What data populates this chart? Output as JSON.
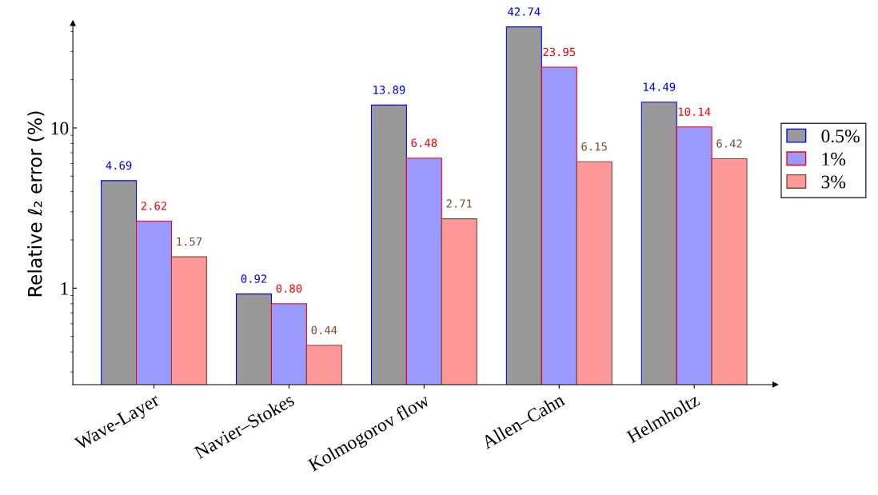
{
  "chart_data": {
    "type": "bar",
    "ylabel": "Relative ℓ₂ error (%)",
    "categories": [
      "Wave-Layer",
      "Navier–Stokes",
      "Kolmogorov flow",
      "Allen–Cahn",
      "Helmholtz"
    ],
    "series": [
      {
        "name": "0.5%",
        "color": "#999999",
        "values": [
          4.69,
          0.92,
          13.89,
          42.74,
          14.49
        ],
        "value_labels": [
          "4.69",
          "0.92",
          "13.89",
          "42.74",
          "14.49"
        ]
      },
      {
        "name": "1%",
        "color": "#9999ff",
        "values": [
          2.62,
          0.8,
          6.48,
          23.95,
          10.14
        ],
        "value_labels": [
          "2.62",
          "0.80",
          "6.48",
          "23.95",
          "10.14"
        ]
      },
      {
        "name": "3%",
        "color": "#ff9999",
        "values": [
          1.57,
          0.44,
          2.71,
          6.15,
          6.42
        ],
        "value_labels": [
          "1.57",
          "0.44",
          "2.71",
          "6.15",
          "6.42"
        ]
      }
    ],
    "log": "y",
    "ylim": [
      0.25,
      45
    ],
    "yticks": [
      1,
      10
    ],
    "grid": false,
    "legend": "right"
  }
}
